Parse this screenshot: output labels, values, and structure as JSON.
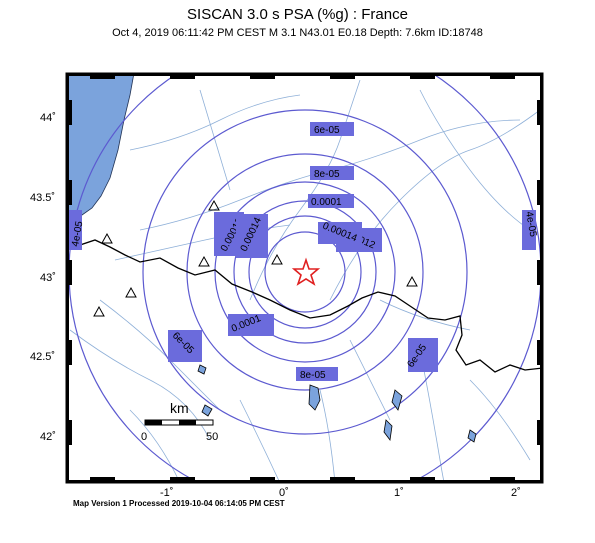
{
  "title": "SISCAN 3.0 s PSA (%g) : France",
  "subtitle": "Oct  4, 2019 06:11:42 PM CEST   M 3.1   N43.01 E0.18   Depth: 7.6km   ID:18748",
  "footer": "Map Version 1 Processed 2019-10-04 06:14:05 PM CEST",
  "epicenter": {
    "lat": 43.01,
    "lon": 0.18,
    "symbol": "star-icon",
    "color": "#e02020"
  },
  "map_extent": {
    "lon_min": -1.85,
    "lon_max": 2.25,
    "lat_min": 41.75,
    "lat_max": 44.35
  },
  "axes": {
    "lat_ticks": [
      {
        "value": 44.0,
        "label": "44˚"
      },
      {
        "value": 43.5,
        "label": "43.5˚"
      },
      {
        "value": 43.0,
        "label": "43˚"
      },
      {
        "value": 42.5,
        "label": "42.5˚"
      },
      {
        "value": 42.0,
        "label": "42˚"
      }
    ],
    "lon_ticks": [
      {
        "value": -1.0,
        "label": "-1˚"
      },
      {
        "value": 0.0,
        "label": "0˚"
      },
      {
        "value": 1.0,
        "label": "1˚"
      },
      {
        "value": 2.0,
        "label": "2˚"
      }
    ]
  },
  "contour_labels": [
    "4e-05",
    "6e-05",
    "8e-05",
    "0.0001",
    "0.00012",
    "0.00014"
  ],
  "scale_bar": {
    "unit": "km",
    "start_label": "0",
    "end_label": "50"
  },
  "colors": {
    "sea": "#7ba3dc",
    "contour": "#5c5ad0",
    "contour_label_bg": "#6b6bdc",
    "border": "#000000",
    "rivers": "#8fb0d8"
  }
}
